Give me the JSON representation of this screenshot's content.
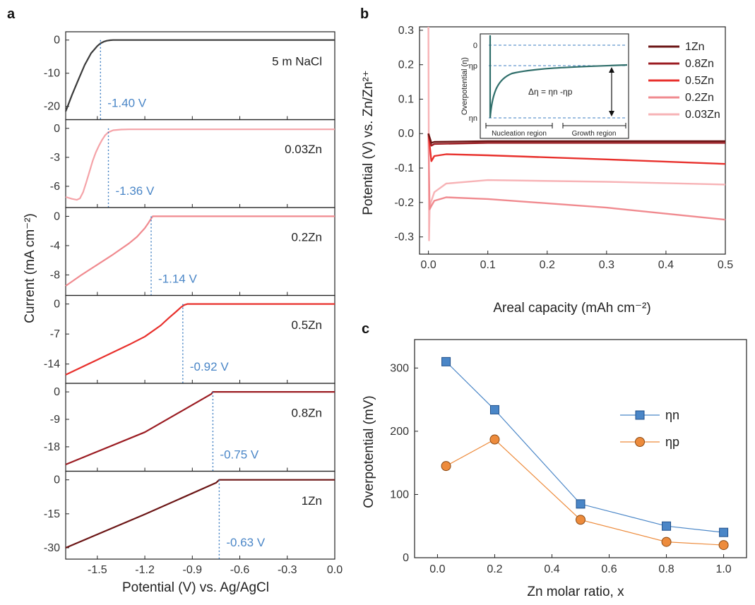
{
  "panel_labels": {
    "a": "a",
    "b": "b",
    "c": "c"
  },
  "chart_data": [
    {
      "id": "a",
      "type": "line",
      "xlabel": "Potential (V) vs. Ag/AgCl",
      "ylabel": "Current (mA cm⁻²)",
      "xlim": [
        -1.7,
        0.0
      ],
      "xticks": [
        "-1.5",
        "-1.2",
        "-0.9",
        "-0.6",
        "-0.3",
        "0.0"
      ],
      "subplots": [
        {
          "label": "5 m NaCl",
          "color": "#3a3a3a",
          "ymin": -24,
          "ymax": 2.5,
          "yticks": [
            "0",
            "-10",
            "-20"
          ],
          "onset_V": -1.48,
          "annotation": "-1.40 V",
          "x": [
            -1.7,
            -1.66,
            -1.62,
            -1.58,
            -1.54,
            -1.5,
            -1.48,
            -1.46,
            -1.44,
            -1.42,
            -1.4,
            0.0
          ],
          "y": [
            -21.5,
            -16.5,
            -12.0,
            -7.5,
            -4.0,
            -1.8,
            -1.0,
            -0.5,
            -0.2,
            -0.05,
            0.0,
            0.0
          ]
        },
        {
          "label": "0.03Zn",
          "color": "#f5a3a8",
          "ymin": -8.2,
          "ymax": 0.9,
          "yticks": [
            "0",
            "-3",
            "-6"
          ],
          "onset_V": -1.43,
          "annotation": "-1.36 V",
          "x": [
            -1.7,
            -1.66,
            -1.63,
            -1.61,
            -1.59,
            -1.57,
            -1.55,
            -1.53,
            -1.51,
            -1.49,
            -1.47,
            -1.45,
            -1.43,
            -1.4,
            -1.35,
            -1.3,
            0.0
          ],
          "y": [
            -7.1,
            -7.3,
            -7.4,
            -7.25,
            -6.6,
            -5.6,
            -4.5,
            -3.4,
            -2.5,
            -1.8,
            -1.2,
            -0.7,
            -0.4,
            -0.2,
            -0.12,
            -0.1,
            -0.1
          ]
        },
        {
          "label": "0.2Zn",
          "color": "#f08a8f",
          "ymin": -10.8,
          "ymax": 1.2,
          "yticks": [
            "0",
            "-4",
            "-8"
          ],
          "onset_V": -1.16,
          "annotation": "-1.14 V",
          "x": [
            -1.7,
            -1.6,
            -1.5,
            -1.4,
            -1.3,
            -1.25,
            -1.2,
            -1.18,
            -1.16,
            -1.15,
            0.0
          ],
          "y": [
            -9.5,
            -8.0,
            -6.6,
            -5.2,
            -3.7,
            -2.8,
            -1.6,
            -1.0,
            -0.3,
            0.0,
            0.0
          ]
        },
        {
          "label": "0.5Zn",
          "color": "#e8302c",
          "ymin": -18.5,
          "ymax": 2.0,
          "yticks": [
            "0",
            "-7",
            "-14"
          ],
          "onset_V": -0.96,
          "annotation": "-0.92 V",
          "x": [
            -1.7,
            -1.5,
            -1.3,
            -1.2,
            -1.1,
            -1.05,
            -1.0,
            -0.97,
            -0.95,
            -0.93,
            0.0
          ],
          "y": [
            -16.5,
            -13.0,
            -9.5,
            -7.6,
            -5.0,
            -3.3,
            -1.7,
            -0.7,
            -0.2,
            0.0,
            0.0
          ]
        },
        {
          "label": "0.8Zn",
          "color": "#9b1c22",
          "ymin": -26,
          "ymax": 2.8,
          "yticks": [
            "0",
            "-9",
            "-18"
          ],
          "onset_V": -0.77,
          "annotation": "-0.75 V",
          "x": [
            -1.7,
            -1.2,
            -0.78,
            -0.77,
            0.0
          ],
          "y": [
            -23.8,
            -13.2,
            -0.7,
            0.0,
            0.0
          ]
        },
        {
          "label": "1Zn",
          "color": "#6b1515",
          "ymin": -35,
          "ymax": 3.8,
          "yticks": [
            "0",
            "-15",
            "-30"
          ],
          "onset_V": -0.73,
          "annotation": "-0.63 V",
          "x": [
            -1.7,
            -1.2,
            -0.75,
            -0.73,
            0.0
          ],
          "y": [
            -30.0,
            -15.2,
            -1.3,
            0.0,
            0.0
          ]
        }
      ]
    },
    {
      "id": "b",
      "type": "line",
      "xlabel": "Areal capacity (mAh cm⁻²)",
      "ylabel": "Potential (V) vs. Zn/Zn²⁺",
      "xlim": [
        -0.015,
        0.5
      ],
      "ylim": [
        -0.35,
        0.31
      ],
      "xticks": [
        "0.0",
        "0.1",
        "0.2",
        "0.3",
        "0.4",
        "0.5"
      ],
      "yticks": [
        "0.3",
        "0.2",
        "0.1",
        "0.0",
        "-0.1",
        "-0.2",
        "-0.3"
      ],
      "series": [
        {
          "name": "1Zn",
          "color": "#6b1515",
          "x": [
            0.0,
            0.005,
            0.01,
            0.1,
            0.5
          ],
          "y": [
            0.0,
            -0.027,
            -0.024,
            -0.022,
            -0.022
          ]
        },
        {
          "name": "0.8Zn",
          "color": "#9b1c22",
          "x": [
            0.0,
            0.005,
            0.01,
            0.1,
            0.5
          ],
          "y": [
            0.0,
            -0.035,
            -0.03,
            -0.027,
            -0.027
          ]
        },
        {
          "name": "0.5Zn",
          "color": "#e8302c",
          "x": [
            0.0,
            0.005,
            0.01,
            0.03,
            0.1,
            0.3,
            0.5
          ],
          "y": [
            0.0,
            -0.08,
            -0.065,
            -0.06,
            -0.063,
            -0.075,
            -0.088
          ]
        },
        {
          "name": "0.2Zn",
          "color": "#f08a8f",
          "x": [
            0.0,
            0.002,
            0.005,
            0.01,
            0.03,
            0.1,
            0.3,
            0.5
          ],
          "y": [
            0.0,
            -0.22,
            -0.21,
            -0.195,
            -0.185,
            -0.19,
            -0.215,
            -0.25
          ]
        },
        {
          "name": "0.03Zn",
          "color": "#f7b3b6",
          "x": [
            0.0,
            0.001,
            0.002,
            0.004,
            0.01,
            0.03,
            0.1,
            0.3,
            0.5
          ],
          "y": [
            0.31,
            -0.31,
            -0.22,
            -0.2,
            -0.17,
            -0.145,
            -0.135,
            -0.14,
            -0.148
          ]
        }
      ],
      "inset": {
        "ylabel": "Overpotential (η)",
        "yticks": [
          "0",
          "ηp",
          "ηn"
        ],
        "equation": "Δη = ηn -ηp",
        "regions": [
          "Nucleation region",
          "Growth region"
        ]
      }
    },
    {
      "id": "c",
      "type": "line",
      "xlabel": "Zn molar ratio, x",
      "ylabel": "Overpotential (mV)",
      "xlim": [
        -0.08,
        1.08
      ],
      "ylim": [
        0,
        345
      ],
      "xticks": [
        "0.0",
        "0.2",
        "0.4",
        "0.6",
        "0.8",
        "1.0"
      ],
      "yticks": [
        "0",
        "100",
        "200",
        "300"
      ],
      "legend": "center-right",
      "series": [
        {
          "name": "ηn",
          "color": "#4a86c7",
          "marker": "square",
          "x": [
            0.03,
            0.2,
            0.5,
            0.8,
            1.0
          ],
          "y": [
            310,
            234,
            85,
            50,
            40
          ]
        },
        {
          "name": "ηp",
          "color": "#ed8b3c",
          "marker": "circle",
          "x": [
            0.03,
            0.2,
            0.5,
            0.8,
            1.0
          ],
          "y": [
            145,
            187,
            60,
            25,
            20
          ]
        }
      ]
    }
  ]
}
